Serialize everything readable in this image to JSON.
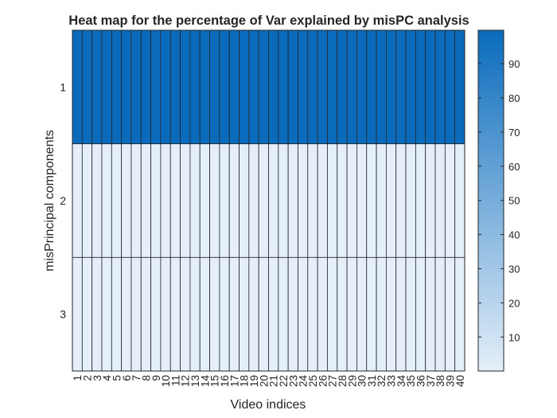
{
  "chart_data": {
    "type": "heatmap",
    "title": "Heat map for the percentage of Var explained by misPC analysis",
    "xlabel": "Video indices",
    "ylabel": "misPrincipal components",
    "x_categories": [
      "1",
      "2",
      "3",
      "4",
      "5",
      "6",
      "7",
      "8",
      "9",
      "10",
      "11",
      "12",
      "13",
      "14",
      "15",
      "16",
      "17",
      "18",
      "19",
      "20",
      "21",
      "22",
      "23",
      "24",
      "25",
      "26",
      "27",
      "28",
      "29",
      "30",
      "31",
      "32",
      "33",
      "34",
      "35",
      "36",
      "37",
      "38",
      "39",
      "40"
    ],
    "y_categories": [
      "1",
      "2",
      "3"
    ],
    "values": [
      [
        99.8,
        99.8,
        99.8,
        99.8,
        99.8,
        99.8,
        99.8,
        99.8,
        99.8,
        99.8,
        99.8,
        99.8,
        99.8,
        99.8,
        99.8,
        99.8,
        99.8,
        99.8,
        99.8,
        99.8,
        99.8,
        99.8,
        99.8,
        99.8,
        99.8,
        99.8,
        99.8,
        99.8,
        99.8,
        99.8,
        99.8,
        99.8,
        99.8,
        99.8,
        99.8,
        99.8,
        99.8,
        99.8,
        99.8,
        99.8
      ],
      [
        0.15,
        0.15,
        0.15,
        0.15,
        0.15,
        0.15,
        0.15,
        0.15,
        0.15,
        0.15,
        0.15,
        0.15,
        0.15,
        0.15,
        0.15,
        0.15,
        0.15,
        0.15,
        0.15,
        0.15,
        0.15,
        0.15,
        0.15,
        0.15,
        0.15,
        0.15,
        0.15,
        0.15,
        0.15,
        0.15,
        0.15,
        0.15,
        0.15,
        0.15,
        0.15,
        0.15,
        0.15,
        0.15,
        0.15,
        0.15
      ],
      [
        0.05,
        0.05,
        0.05,
        0.05,
        0.05,
        0.05,
        0.05,
        0.05,
        0.05,
        0.05,
        0.05,
        0.05,
        0.05,
        0.05,
        0.05,
        0.05,
        0.05,
        0.05,
        0.05,
        0.05,
        0.05,
        0.05,
        0.05,
        0.05,
        0.05,
        0.05,
        0.05,
        0.05,
        0.05,
        0.05,
        0.05,
        0.05,
        0.05,
        0.05,
        0.05,
        0.05,
        0.05,
        0.05,
        0.05,
        0.05
      ]
    ],
    "colorbar": {
      "ticks": [
        10,
        20,
        30,
        40,
        50,
        60,
        70,
        80,
        90
      ],
      "range": [
        0.05,
        99.8
      ],
      "color_low": "#e4eff9",
      "color_high": "#0a6bbc"
    },
    "grid": false,
    "cell_border_color": "#262626"
  }
}
